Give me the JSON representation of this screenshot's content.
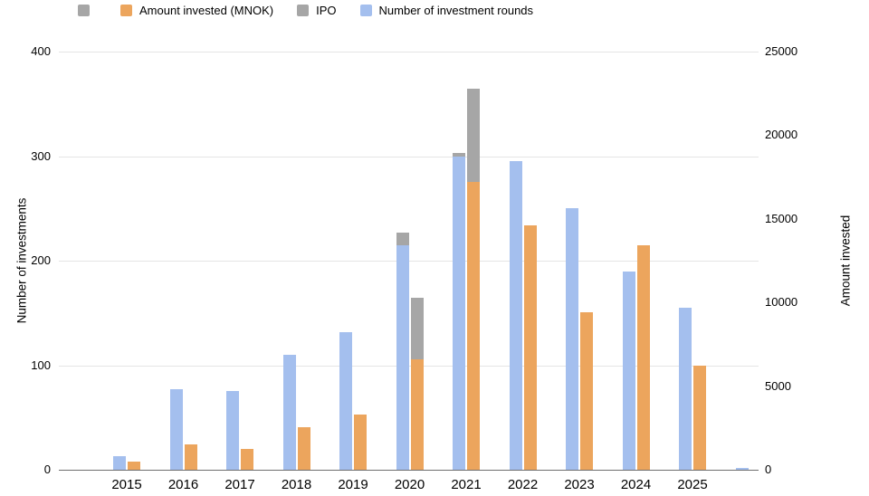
{
  "legend": [
    {
      "label": "",
      "color": "#a6a6a6"
    },
    {
      "label": "Amount invested (MNOK)",
      "color": "#eca55d"
    },
    {
      "label": "IPO",
      "color": "#a6a6a6"
    },
    {
      "label": "Number of investment rounds",
      "color": "#a4bfee"
    }
  ],
  "axes": {
    "left": {
      "title": "Number of investments",
      "ticks": [
        0,
        100,
        200,
        300,
        400
      ],
      "max": 400
    },
    "right": {
      "title": "Amount invested",
      "ticks": [
        0,
        5000,
        10000,
        15000,
        20000,
        25000
      ],
      "max": 25000
    }
  },
  "chart_data": {
    "type": "bar",
    "title": "",
    "categories": [
      "2015",
      "2016",
      "2017",
      "2018",
      "2019",
      "2020",
      "2021",
      "2022",
      "2023",
      "2024",
      "2025",
      ""
    ],
    "series": [
      {
        "name": "Number of investment rounds",
        "axis": "left",
        "color": "#a4bfee",
        "values": [
          13,
          77,
          75,
          110,
          132,
          215,
          300,
          295,
          250,
          190,
          155,
          2
        ]
      },
      {
        "name": "IPO (stacked on rounds)",
        "axis": "left",
        "color": "#a6a6a6",
        "values": [
          0,
          0,
          0,
          0,
          0,
          12,
          3,
          0,
          0,
          0,
          0,
          0
        ]
      },
      {
        "name": "Amount invested (MNOK)",
        "axis": "right",
        "color": "#eca55d",
        "values": [
          500,
          1500,
          1250,
          2550,
          3300,
          6600,
          17200,
          14600,
          9400,
          13400,
          6200,
          0
        ]
      },
      {
        "name": "IPO",
        "axis": "right",
        "color": "#a6a6a6",
        "values": [
          0,
          0,
          0,
          0,
          0,
          3700,
          5600,
          0,
          0,
          0,
          0,
          0
        ]
      }
    ],
    "ylabel_left": "Number of investments",
    "ylabel_right": "Amount invested",
    "ylim_left": [
      0,
      400
    ],
    "ylim_right": [
      0,
      25000
    ],
    "grid": true,
    "legend_position": "top"
  }
}
